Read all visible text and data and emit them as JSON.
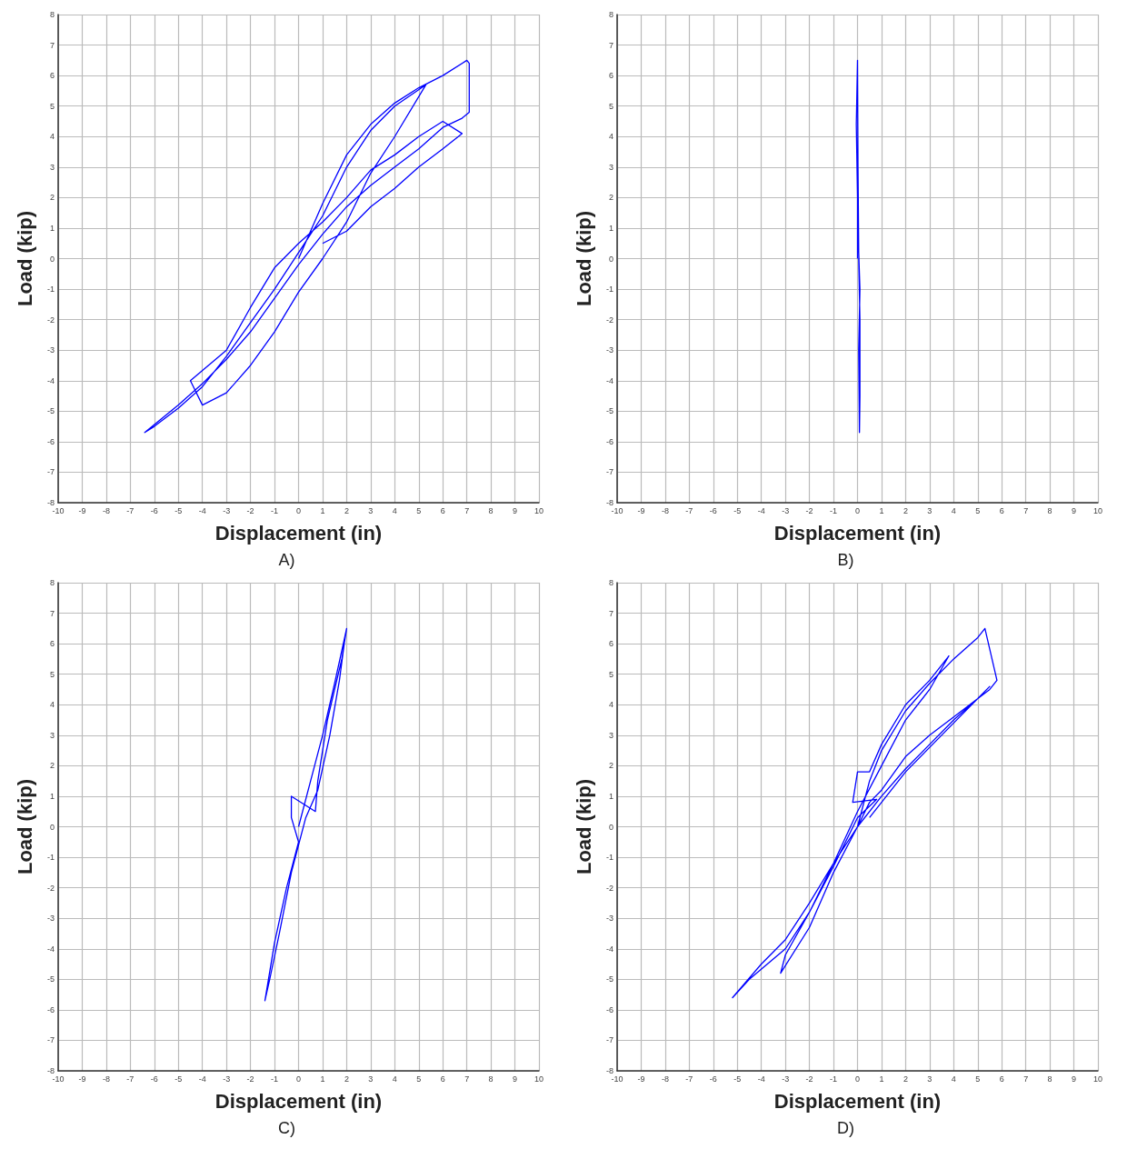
{
  "chart_data": [
    {
      "type": "line",
      "xlabel": "Displacement (in)",
      "ylabel": "Load (kip)",
      "annotations": [
        "A)"
      ],
      "xlim": [
        -10,
        10
      ],
      "ylim": [
        -8,
        8
      ],
      "xticks": [
        -10,
        -9,
        -8,
        -7,
        -6,
        -5,
        -4,
        -3,
        -2,
        -1,
        0,
        1,
        2,
        3,
        4,
        5,
        6,
        7,
        8,
        9,
        10
      ],
      "yticks": [
        -8,
        -7,
        -6,
        -5,
        -4,
        -3,
        -2,
        -1,
        0,
        1,
        2,
        3,
        4,
        5,
        6,
        7,
        8
      ],
      "grid": true,
      "marker": "none",
      "line_style": "solid",
      "x": [
        0,
        1,
        2,
        3,
        4,
        5,
        6,
        7,
        7.1,
        7.1,
        6.8,
        6,
        5,
        4,
        3,
        2,
        1,
        0,
        -1,
        -2,
        -3,
        -4,
        -5,
        -6.4,
        -6,
        -5,
        -4,
        -3,
        -2,
        -1,
        0,
        1,
        2,
        3,
        4,
        5.3,
        4,
        3,
        2,
        1,
        0,
        -1,
        -2,
        -3,
        -4,
        -4.5,
        -3,
        -2,
        -1,
        0,
        1,
        2,
        3,
        4,
        5,
        6,
        6.8,
        6,
        5,
        4,
        3,
        2,
        1
      ],
      "values": [
        0,
        1.8,
        3.4,
        4.4,
        5.1,
        5.6,
        6,
        6.5,
        6.4,
        4.8,
        4.6,
        4.3,
        3.6,
        3,
        2.4,
        1.7,
        0.8,
        -0.2,
        -1.3,
        -2.4,
        -3.3,
        -4.1,
        -4.8,
        -5.7,
        -5.5,
        -4.9,
        -4.2,
        -3.2,
        -2.1,
        -1,
        0.2,
        1.4,
        3,
        4.2,
        5,
        5.7,
        4,
        2.8,
        1.2,
        0,
        -1.1,
        -2.4,
        -3.5,
        -4.4,
        -4.8,
        -4,
        -3,
        -1.6,
        -0.3,
        0.5,
        1.2,
        2,
        2.9,
        3.4,
        4,
        4.5,
        4.1,
        3.6,
        3,
        2.3,
        1.7,
        0.9,
        0.5
      ],
      "color": "#0000ff"
    },
    {
      "type": "line",
      "xlabel": "Displacement (in)",
      "ylabel": "Load (kip)",
      "annotations": [
        "B)"
      ],
      "xlim": [
        -10,
        10
      ],
      "ylim": [
        -8,
        8
      ],
      "xticks": [
        -10,
        -9,
        -8,
        -7,
        -6,
        -5,
        -4,
        -3,
        -2,
        -1,
        0,
        1,
        2,
        3,
        4,
        5,
        6,
        7,
        8,
        9,
        10
      ],
      "yticks": [
        -8,
        -7,
        -6,
        -5,
        -4,
        -3,
        -2,
        -1,
        0,
        1,
        2,
        3,
        4,
        5,
        6,
        7,
        8
      ],
      "grid": true,
      "marker": "none",
      "line_style": "solid",
      "x": [
        0,
        0,
        -0.05,
        0,
        0.02,
        0.05,
        0.1,
        0.05,
        0.08,
        0.1,
        0.1,
        0.05
      ],
      "values": [
        0,
        2,
        4.4,
        6.5,
        3,
        0.2,
        -1,
        -3,
        -5.7,
        -4.5,
        -2,
        0
      ],
      "color": "#0000ff"
    },
    {
      "type": "line",
      "xlabel": "Displacement (in)",
      "ylabel": "Load (kip)",
      "annotations": [
        "C)"
      ],
      "xlim": [
        -10,
        10
      ],
      "ylim": [
        -8,
        8
      ],
      "xticks": [
        -10,
        -9,
        -8,
        -7,
        -6,
        -5,
        -4,
        -3,
        -2,
        -1,
        0,
        1,
        2,
        3,
        4,
        5,
        6,
        7,
        8,
        9,
        10
      ],
      "yticks": [
        -8,
        -7,
        -6,
        -5,
        -4,
        -3,
        -2,
        -1,
        0,
        1,
        2,
        3,
        4,
        5,
        6,
        7,
        8
      ],
      "grid": true,
      "marker": "none",
      "line_style": "solid",
      "x": [
        0,
        0.5,
        1,
        1.5,
        2,
        1.8,
        1.2,
        0.8,
        0.7,
        -0.3,
        -0.3,
        0,
        -0.5,
        -1,
        -1.4,
        -1.2,
        -0.8,
        -0.3,
        0.3,
        0.8,
        1.3,
        1.7,
        1.9
      ],
      "values": [
        0,
        1.5,
        3,
        4.7,
        6.5,
        5.5,
        3.5,
        1.5,
        0.5,
        1,
        0.3,
        -0.5,
        -2,
        -3.8,
        -5.7,
        -5,
        -3.5,
        -1.5,
        0.3,
        1.2,
        3,
        4.8,
        6
      ],
      "color": "#0000ff"
    },
    {
      "type": "line",
      "xlabel": "Displacement (in)",
      "ylabel": "Load (kip)",
      "annotations": [
        "D)"
      ],
      "xlim": [
        -10,
        10
      ],
      "ylim": [
        -8,
        8
      ],
      "xticks": [
        -10,
        -9,
        -8,
        -7,
        -6,
        -5,
        -4,
        -3,
        -2,
        -1,
        0,
        1,
        2,
        3,
        4,
        5,
        6,
        7,
        8,
        9,
        10
      ],
      "yticks": [
        -8,
        -7,
        -6,
        -5,
        -4,
        -3,
        -2,
        -1,
        0,
        1,
        2,
        3,
        4,
        5,
        6,
        7,
        8
      ],
      "grid": true,
      "marker": "none",
      "line_style": "solid",
      "x": [
        0,
        0.5,
        1,
        2,
        3,
        4,
        5,
        5.3,
        5.8,
        5.5,
        4,
        3,
        2,
        1,
        0.5,
        0,
        -1,
        -2,
        -3,
        -4,
        -5.2,
        -4.5,
        -3,
        -2,
        -1,
        0,
        1,
        2,
        3,
        3.8,
        3,
        2,
        1,
        0.5,
        0,
        -0.2,
        0.8,
        0,
        -1,
        -2,
        -3,
        -3.2,
        -2,
        -1,
        0,
        1,
        2,
        3,
        4,
        5,
        5.5,
        4,
        2,
        0.5
      ],
      "values": [
        0,
        1.5,
        2.5,
        3.8,
        4.7,
        5.5,
        6.2,
        6.5,
        4.8,
        4.5,
        3.6,
        3,
        2.3,
        1.2,
        0.8,
        0,
        -1.2,
        -2.5,
        -3.7,
        -4.5,
        -5.6,
        -5,
        -4,
        -2.8,
        -1.2,
        0.5,
        2,
        3.5,
        4.5,
        5.6,
        4.8,
        4,
        2.7,
        1.8,
        1.8,
        0.8,
        0.9,
        0.3,
        -1.3,
        -2.8,
        -4.2,
        -4.8,
        -3.3,
        -1.5,
        0,
        1,
        1.9,
        2.7,
        3.5,
        4.2,
        4.6,
        3.4,
        1.8,
        0.3
      ],
      "color": "#0000ff"
    }
  ]
}
